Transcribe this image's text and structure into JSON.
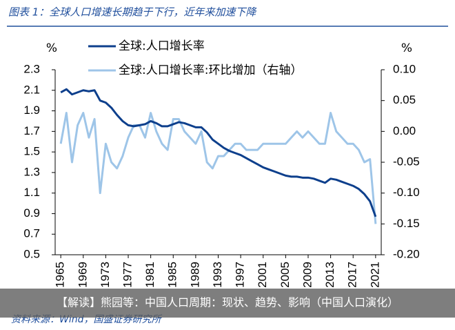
{
  "chart_data": {
    "type": "line",
    "title": "图表 1：全球人口增速长期趋于下行，近年来加速下降",
    "y_unit": "%",
    "y2_unit": "%",
    "x": [
      1965,
      1966,
      1967,
      1968,
      1969,
      1970,
      1971,
      1972,
      1973,
      1974,
      1975,
      1976,
      1977,
      1978,
      1979,
      1980,
      1981,
      1982,
      1983,
      1984,
      1985,
      1986,
      1987,
      1988,
      1989,
      1990,
      1991,
      1992,
      1993,
      1994,
      1995,
      1996,
      1997,
      1998,
      1999,
      2000,
      2001,
      2002,
      2003,
      2004,
      2005,
      2006,
      2007,
      2008,
      2009,
      2010,
      2011,
      2012,
      2013,
      2014,
      2015,
      2016,
      2017,
      2018,
      2019,
      2020,
      2021
    ],
    "series": [
      {
        "name": "全球:人口增长率",
        "color": "#0d3f8c",
        "axis": "y",
        "values": [
          2.08,
          2.11,
          2.06,
          2.08,
          2.1,
          2.09,
          2.1,
          2.0,
          1.98,
          1.93,
          1.86,
          1.8,
          1.76,
          1.75,
          1.76,
          1.77,
          1.8,
          1.78,
          1.75,
          1.75,
          1.77,
          1.79,
          1.78,
          1.76,
          1.74,
          1.74,
          1.69,
          1.62,
          1.58,
          1.54,
          1.51,
          1.49,
          1.47,
          1.44,
          1.41,
          1.38,
          1.35,
          1.33,
          1.31,
          1.29,
          1.27,
          1.26,
          1.26,
          1.25,
          1.25,
          1.24,
          1.22,
          1.2,
          1.24,
          1.23,
          1.21,
          1.19,
          1.17,
          1.14,
          1.09,
          1.02,
          0.87
        ]
      },
      {
        "name": "全球:人口增长率:环比增加（右轴）",
        "color": "#9ec5e8",
        "axis": "y2",
        "values": [
          -0.02,
          0.03,
          -0.05,
          0.01,
          0.03,
          -0.01,
          0.02,
          -0.1,
          -0.02,
          -0.05,
          -0.06,
          -0.04,
          -0.01,
          0.01,
          0.01,
          -0.01,
          0.03,
          0.0,
          -0.02,
          -0.03,
          0.02,
          0.02,
          0.0,
          -0.01,
          -0.02,
          0.0,
          -0.05,
          -0.06,
          -0.04,
          -0.04,
          -0.03,
          -0.02,
          -0.02,
          -0.03,
          -0.03,
          -0.03,
          -0.02,
          -0.02,
          -0.02,
          -0.02,
          -0.02,
          -0.01,
          0.0,
          -0.01,
          0.0,
          -0.01,
          -0.02,
          -0.02,
          0.03,
          0.0,
          -0.01,
          -0.02,
          -0.02,
          -0.03,
          -0.05,
          -0.045,
          -0.15
        ]
      }
    ],
    "xlim": [
      1964,
      2022
    ],
    "xticks": [
      1965,
      1969,
      1973,
      1977,
      1981,
      1985,
      1989,
      1993,
      1997,
      2001,
      2005,
      2009,
      2013,
      2017,
      2021
    ],
    "ylim": [
      0.5,
      2.3
    ],
    "yticks": [
      {
        "value": 0.5,
        "label": "0.5"
      },
      {
        "value": 0.7,
        "label": "0.7"
      },
      {
        "value": 0.9,
        "label": "0.9"
      },
      {
        "value": 1.1,
        "label": "1.1"
      },
      {
        "value": 1.3,
        "label": "1.3"
      },
      {
        "value": 1.5,
        "label": "1.5"
      },
      {
        "value": 1.7,
        "label": "1.7"
      },
      {
        "value": 1.9,
        "label": "1.9"
      },
      {
        "value": 2.1,
        "label": "2.1"
      },
      {
        "value": 2.3,
        "label": "2.3"
      }
    ],
    "y2lim": [
      -0.2,
      0.1
    ],
    "y2ticks": [
      {
        "value": -0.2,
        "label": "-0.20"
      },
      {
        "value": -0.15,
        "label": "-0.15"
      },
      {
        "value": -0.1,
        "label": "-0.10"
      },
      {
        "value": -0.05,
        "label": "-0.05"
      },
      {
        "value": 0,
        "label": "0.00"
      },
      {
        "value": 0.05,
        "label": "0.05"
      },
      {
        "value": 0.1,
        "label": "0.10"
      }
    ],
    "legend": "top",
    "source": "资料来源：Wind，国盛证券研究所",
    "overlay_caption": "【解读】熊园等：中国人口周期：现状、趋势、影响（中国人口演化）"
  }
}
